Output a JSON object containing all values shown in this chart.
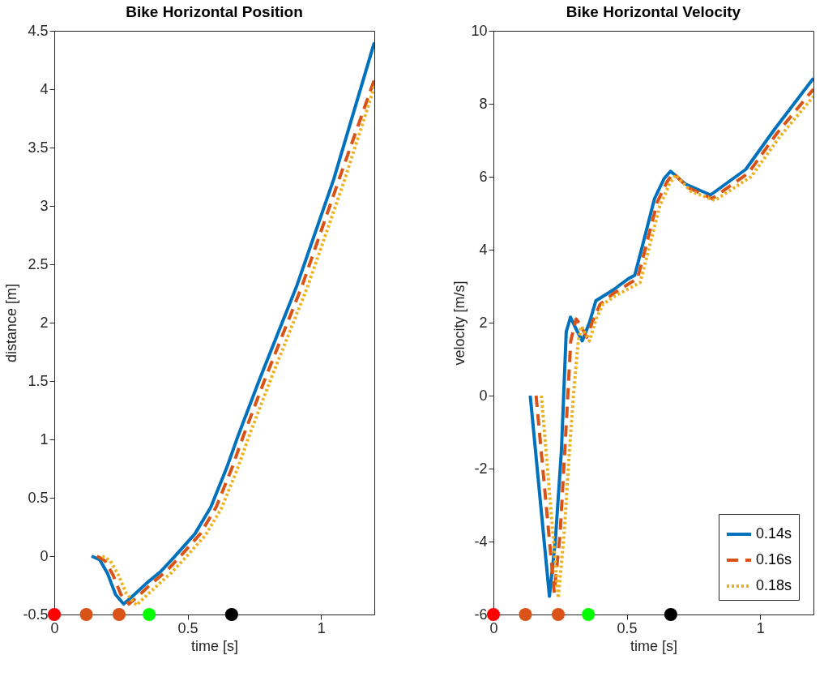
{
  "chart_data": [
    {
      "type": "line",
      "title": "Bike Horizontal Position",
      "xlabel": "time [s]",
      "ylabel": "distance [m]",
      "xlim": [
        0,
        1.2
      ],
      "xticks": [
        0,
        0.5,
        1
      ],
      "ylim": [
        -0.5,
        4.5
      ],
      "yticks": [
        -0.5,
        0,
        0.5,
        1,
        1.5,
        2,
        2.5,
        3,
        3.5,
        4,
        4.5
      ],
      "grid": false,
      "legend": false,
      "series": [
        {
          "color": "#0072bd",
          "line_style": "solid",
          "x": [
            0.14,
            0.17,
            0.2,
            0.23,
            0.26,
            0.3,
            0.347,
            0.4,
            0.449,
            0.527,
            0.587,
            0.647,
            0.689,
            0.769,
            0.91,
            1.048,
            1.2
          ],
          "values": [
            0,
            -0.03,
            -0.15,
            -0.33,
            -0.41,
            -0.33,
            -0.23,
            -0.13,
            -0.01,
            0.19,
            0.42,
            0.76,
            1.03,
            1.51,
            2.32,
            3.23,
            4.4
          ]
        },
        {
          "color": "#d95319",
          "line_style": "dashed",
          "x": [
            0.16,
            0.19,
            0.22,
            0.25,
            0.28,
            0.32,
            0.367,
            0.42,
            0.469,
            0.547,
            0.607,
            0.667,
            0.709,
            0.789,
            0.93,
            1.068,
            1.2
          ],
          "values": [
            0,
            -0.04,
            -0.16,
            -0.33,
            -0.41,
            -0.33,
            -0.23,
            -0.13,
            -0.01,
            0.19,
            0.42,
            0.76,
            1.03,
            1.51,
            2.32,
            3.23,
            4.08
          ]
        },
        {
          "color": "#edb120",
          "line_style": "dotted",
          "x": [
            0.18,
            0.21,
            0.24,
            0.27,
            0.308,
            0.34,
            0.387,
            0.44,
            0.489,
            0.567,
            0.627,
            0.687,
            0.729,
            0.809,
            0.95,
            1.088,
            1.2
          ],
          "values": [
            0,
            -0.04,
            -0.16,
            -0.32,
            -0.42,
            -0.35,
            -0.25,
            -0.14,
            -0.02,
            0.18,
            0.41,
            0.75,
            1.02,
            1.5,
            2.31,
            3.22,
            4.02
          ]
        },
        {
          "type": "scatter",
          "marker": "circle",
          "x": [
            0,
            0.12,
            0.243,
            0.356,
            0.665
          ],
          "values": [
            -0.5,
            -0.5,
            -0.5,
            -0.5,
            -0.5
          ],
          "colors": [
            "#ff0000",
            "#d95319",
            "#d95319",
            "#00ff00",
            "#000000"
          ]
        }
      ]
    },
    {
      "type": "line",
      "title": "Bike Horizontal Velocity",
      "xlabel": "time [s]",
      "ylabel": "velocity [m/s]",
      "xlim": [
        0,
        1.2
      ],
      "xticks": [
        0,
        0.5,
        1
      ],
      "ylim": [
        -6,
        10
      ],
      "yticks": [
        -6,
        -4,
        -2,
        0,
        2,
        4,
        6,
        8,
        10
      ],
      "grid": false,
      "legend": "bottom right",
      "series": [
        {
          "name": "0.14s",
          "color": "#0072bd",
          "line_style": "solid",
          "x": [
            0.138,
            0.21,
            0.232,
            0.255,
            0.273,
            0.289,
            0.305,
            0.333,
            0.36,
            0.384,
            0.45,
            0.505,
            0.53,
            0.555,
            0.604,
            0.64,
            0.664,
            0.72,
            0.814,
            0.946,
            1.054,
            1.2
          ],
          "values": [
            0,
            -5.5,
            -4,
            -1.5,
            1.75,
            2.15,
            1.9,
            1.5,
            2.0,
            2.6,
            2.9,
            3.2,
            3.3,
            4.0,
            5.4,
            5.95,
            6.15,
            5.8,
            5.5,
            6.2,
            7.3,
            8.7
          ]
        },
        {
          "name": "0.16s",
          "color": "#d95319",
          "line_style": "dashed",
          "x": [
            0.16,
            0.228,
            0.25,
            0.27,
            0.29,
            0.31,
            0.325,
            0.35,
            0.37,
            0.4,
            0.45,
            0.515,
            0.54,
            0.565,
            0.614,
            0.65,
            0.674,
            0.73,
            0.82,
            0.956,
            1.064,
            1.2
          ],
          "values": [
            0,
            -5.4,
            -3.8,
            -1.2,
            1.5,
            2.1,
            1.95,
            1.6,
            2.0,
            2.5,
            2.8,
            3.1,
            3.2,
            3.9,
            5.3,
            5.85,
            6.1,
            5.7,
            5.4,
            6.1,
            7.2,
            8.4
          ]
        },
        {
          "name": "0.18s",
          "color": "#edb120",
          "line_style": "dotted",
          "x": [
            0.18,
            0.243,
            0.265,
            0.285,
            0.3,
            0.318,
            0.33,
            0.345,
            0.36,
            0.385,
            0.41,
            0.46,
            0.525,
            0.55,
            0.575,
            0.624,
            0.66,
            0.684,
            0.74,
            0.83,
            0.966,
            1.074,
            1.2
          ],
          "values": [
            0,
            -5.55,
            -3.8,
            -1.5,
            0,
            1.5,
            1.9,
            1.7,
            1.5,
            2.1,
            2.5,
            2.75,
            3.0,
            3.1,
            3.8,
            5.2,
            5.8,
            6.05,
            5.6,
            5.35,
            6.0,
            7.1,
            8.2
          ]
        },
        {
          "type": "scatter",
          "marker": "circle",
          "x": [
            0,
            0.12,
            0.243,
            0.356,
            0.665
          ],
          "values": [
            -6,
            -6,
            -6,
            -6,
            -6
          ],
          "colors": [
            "#ff0000",
            "#d95319",
            "#d95319",
            "#00ff00",
            "#000000"
          ]
        }
      ]
    }
  ]
}
